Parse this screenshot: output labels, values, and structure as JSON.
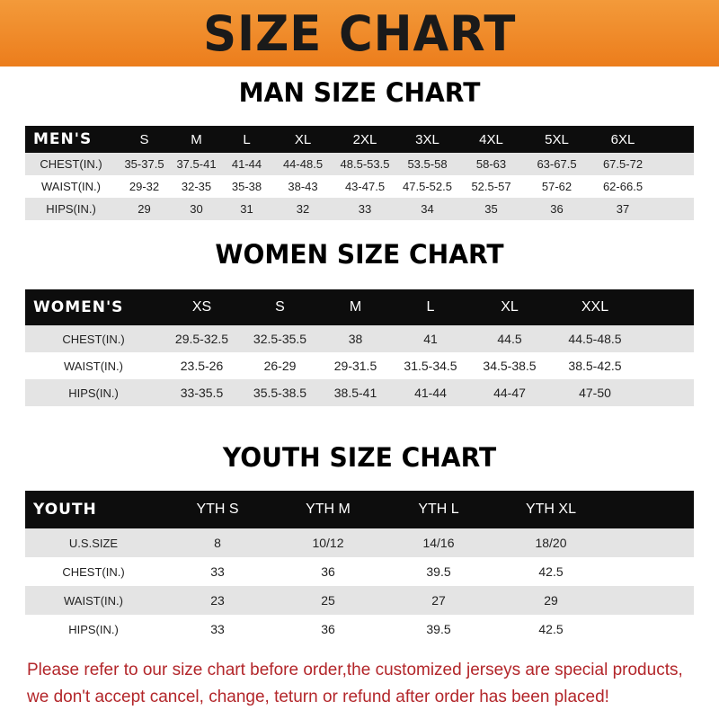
{
  "banner": {
    "title": "SIZE CHART",
    "color": "#ef8a26"
  },
  "men": {
    "title": "MAN SIZE CHART",
    "header": "MEN'S",
    "sizes": [
      "S",
      "M",
      "L",
      "XL",
      "2XL",
      "3XL",
      "4XL",
      "5XL",
      "6XL"
    ],
    "rows": [
      {
        "label": "CHEST(IN.)",
        "values": [
          "35-37.5",
          "37.5-41",
          "41-44",
          "44-48.5",
          "48.5-53.5",
          "53.5-58",
          "58-63",
          "63-67.5",
          "67.5-72"
        ]
      },
      {
        "label": "WAIST(IN.)",
        "values": [
          "29-32",
          "32-35",
          "35-38",
          "38-43",
          "43-47.5",
          "47.5-52.5",
          "52.5-57",
          "57-62",
          "62-66.5"
        ]
      },
      {
        "label": "HIPS(IN.)",
        "values": [
          "29",
          "30",
          "31",
          "32",
          "33",
          "34",
          "35",
          "36",
          "37"
        ]
      }
    ]
  },
  "women": {
    "title": "WOMEN SIZE CHART",
    "header": "WOMEN'S",
    "sizes": [
      "XS",
      "S",
      "M",
      "L",
      "XL",
      "XXL"
    ],
    "rows": [
      {
        "label": "CHEST(IN.)",
        "values": [
          "29.5-32.5",
          "32.5-35.5",
          "38",
          "41",
          "44.5",
          "44.5-48.5"
        ]
      },
      {
        "label": "WAIST(IN.)",
        "values": [
          "23.5-26",
          "26-29",
          "29-31.5",
          "31.5-34.5",
          "34.5-38.5",
          "38.5-42.5"
        ]
      },
      {
        "label": "HIPS(IN.)",
        "values": [
          "33-35.5",
          "35.5-38.5",
          "38.5-41",
          "41-44",
          "44-47",
          "47-50"
        ]
      }
    ]
  },
  "youth": {
    "title": "YOUTH SIZE CHART",
    "header": "YOUTH",
    "sizes": [
      "YTH S",
      "YTH M",
      "YTH L",
      "YTH XL"
    ],
    "rows": [
      {
        "label": "U.S.SIZE",
        "values": [
          "8",
          "10/12",
          "14/16",
          "18/20"
        ]
      },
      {
        "label": "CHEST(IN.)",
        "values": [
          "33",
          "36",
          "39.5",
          "42.5"
        ]
      },
      {
        "label": "WAIST(IN.)",
        "values": [
          "23",
          "25",
          "27",
          "29"
        ]
      },
      {
        "label": "HIPS(IN.)",
        "values": [
          "33",
          "36",
          "39.5",
          "42.5"
        ]
      }
    ]
  },
  "notice": {
    "line1": "Please refer to our size chart before order,the customized jerseys are special products,",
    "line2": "we don't accept cancel, change, teturn or refund after order has been placed!",
    "color": "#b3262a"
  }
}
